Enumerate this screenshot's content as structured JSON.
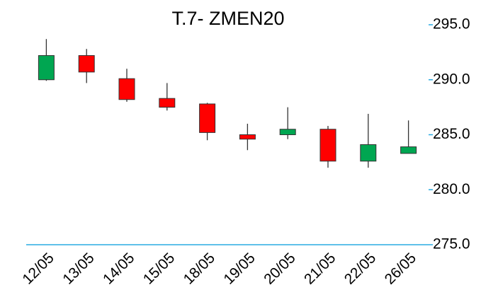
{
  "chart_data": {
    "type": "candlestick",
    "title": "T.7- ZMEN20",
    "categories": [
      "12/05",
      "13/05",
      "14/05",
      "15/05",
      "18/05",
      "19/05",
      "20/05",
      "21/05",
      "22/05",
      "26/05"
    ],
    "open": [
      290.0,
      292.2,
      290.1,
      288.3,
      287.8,
      285.0,
      285.0,
      285.5,
      282.6,
      283.3
    ],
    "high": [
      293.7,
      292.8,
      291.0,
      289.7,
      287.9,
      286.0,
      287.5,
      285.8,
      286.9,
      286.3
    ],
    "low": [
      289.9,
      289.7,
      288.0,
      287.2,
      284.5,
      283.6,
      284.6,
      282.0,
      282.0,
      283.3
    ],
    "close": [
      292.2,
      290.7,
      288.2,
      287.5,
      285.2,
      284.6,
      285.5,
      282.6,
      284.1,
      283.9
    ],
    "up_color": "#00a651",
    "down_color": "#ff0000",
    "axis_color": "#29abe2",
    "ylim": [
      275,
      295
    ],
    "yticks": [
      {
        "value": 275,
        "label": "275.0"
      },
      {
        "value": 280,
        "label": "280.0"
      },
      {
        "value": 285,
        "label": "285.0"
      },
      {
        "value": 290,
        "label": "290.0"
      },
      {
        "value": 295,
        "label": "295.0"
      }
    ],
    "y_axis_side": "right",
    "grid": false
  }
}
